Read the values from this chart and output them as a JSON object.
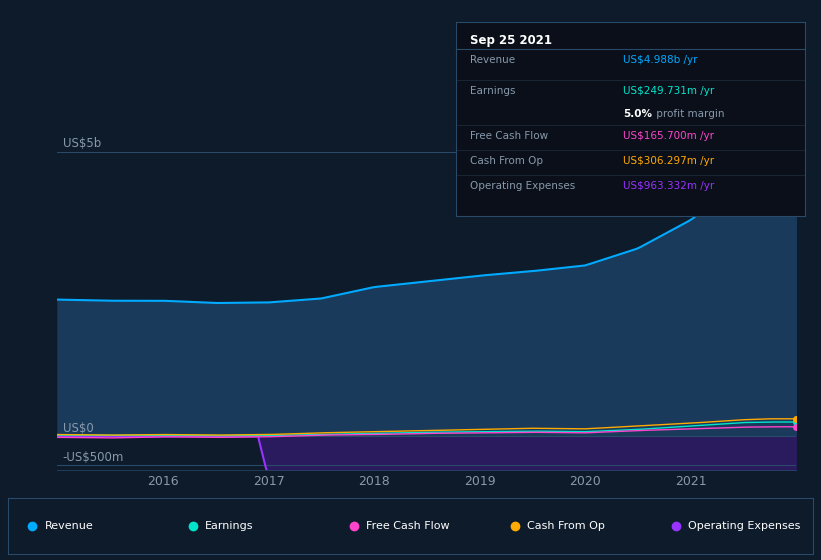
{
  "bg_color": "#0d1b2a",
  "plot_bg_color": "#0d1b2a",
  "title": "Sep 25 2021",
  "x_ticks": [
    "2016",
    "2017",
    "2018",
    "2019",
    "2020",
    "2021"
  ],
  "ylim": [
    -600,
    5400
  ],
  "revenue_color": "#00aaff",
  "earnings_color": "#00e5cc",
  "fcf_color": "#ff44cc",
  "cashfromop_color": "#ffaa00",
  "opex_color": "#9933ff",
  "revenue_fill": "#1a3a5c",
  "opex_fill": "#2a1a5e",
  "grid_color": "#2a4a6a",
  "label_color": "#8899aa",
  "tooltip_bg": "#0a0f1a",
  "tooltip_date": "Sep 25 2021",
  "tooltip_revenue_label": "Revenue",
  "tooltip_revenue_val": "US$4.988b /yr",
  "tooltip_earnings_label": "Earnings",
  "tooltip_earnings_val": "US$249.731m /yr",
  "tooltip_margin": "5.0%",
  "tooltip_margin_suffix": " profit margin",
  "tooltip_fcf_label": "Free Cash Flow",
  "tooltip_fcf_val": "US$165.700m /yr",
  "tooltip_cop_label": "Cash From Op",
  "tooltip_cop_val": "US$306.297m /yr",
  "tooltip_opex_label": "Operating Expenses",
  "tooltip_opex_val": "US$963.332m /yr",
  "legend_items": [
    "Revenue",
    "Earnings",
    "Free Cash Flow",
    "Cash From Op",
    "Operating Expenses"
  ],
  "legend_colors": [
    "#00aaff",
    "#00e5cc",
    "#ff44cc",
    "#ffaa00",
    "#9933ff"
  ]
}
